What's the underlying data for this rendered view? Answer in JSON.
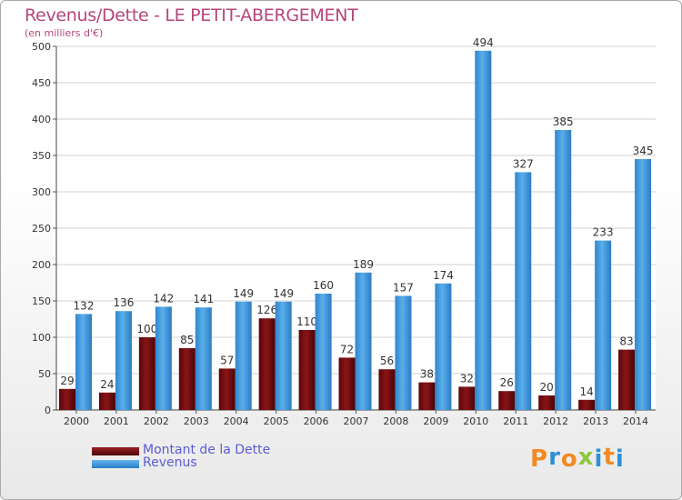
{
  "chart_data": {
    "type": "bar",
    "title": "Revenus/Dette - LE PETIT-ABERGEMENT",
    "subtitle": "(en milliers d'€)",
    "categories": [
      "2000",
      "2001",
      "2002",
      "2003",
      "2004",
      "2005",
      "2006",
      "2007",
      "2008",
      "2009",
      "2010",
      "2011",
      "2012",
      "2013",
      "2014"
    ],
    "series": [
      {
        "name": "Montant de la Dette",
        "color": "#7a0f12",
        "values": [
          29,
          24,
          100,
          85,
          57,
          126,
          110,
          72,
          56,
          38,
          32,
          26,
          20,
          14,
          83
        ]
      },
      {
        "name": "Revenus",
        "color": "#3f97de",
        "values": [
          132,
          136,
          142,
          141,
          149,
          149,
          160,
          189,
          157,
          174,
          494,
          327,
          385,
          233,
          345
        ]
      }
    ],
    "ylim": [
      0,
      500
    ],
    "yticks": [
      0,
      50,
      100,
      150,
      200,
      250,
      300,
      350,
      400,
      450,
      500
    ],
    "grid": true,
    "legend_position": "bottom-left"
  },
  "logo": {
    "text": "Proxiti",
    "colors": [
      "#f08a24",
      "#2d8fd5",
      "#f08a24",
      "#8dc63f",
      "#2d8fd5",
      "#f08a24",
      "#2d8fd5"
    ]
  }
}
